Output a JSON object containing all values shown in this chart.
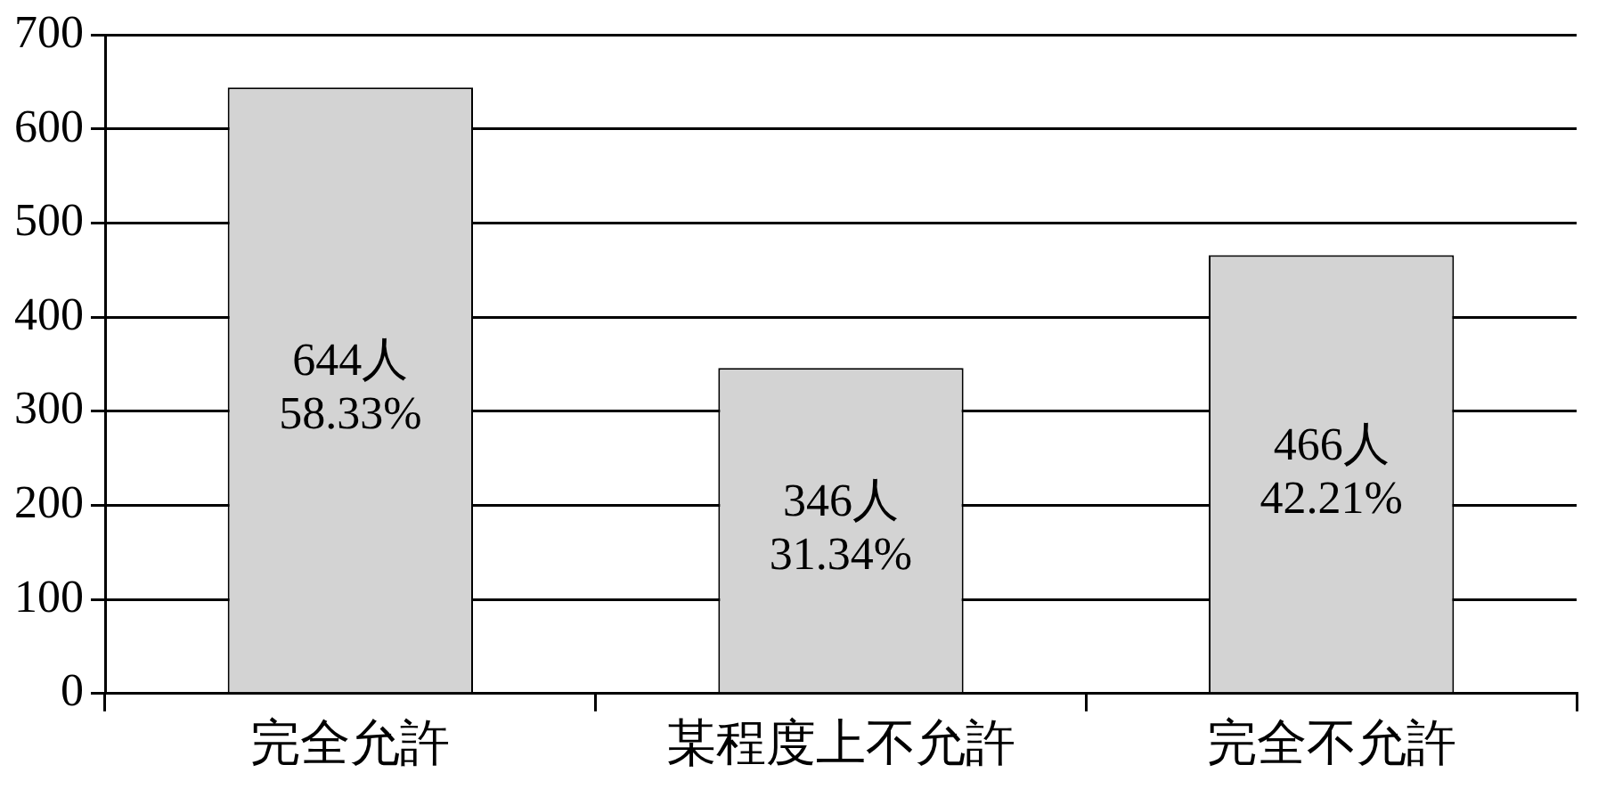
{
  "chart_data": {
    "type": "bar",
    "categories": [
      "完全允許",
      "某程度上不允許",
      "完全不允許"
    ],
    "values": [
      644,
      346,
      466
    ],
    "value_labels": [
      "644人\n58.33%",
      "346人\n31.34%",
      "466人\n42.21%"
    ],
    "color": "#d3d3d3",
    "ylim": [
      0,
      700
    ],
    "yticks": [
      0,
      100,
      200,
      300,
      400,
      500,
      600,
      700
    ],
    "grid": "y",
    "legend": false
  }
}
